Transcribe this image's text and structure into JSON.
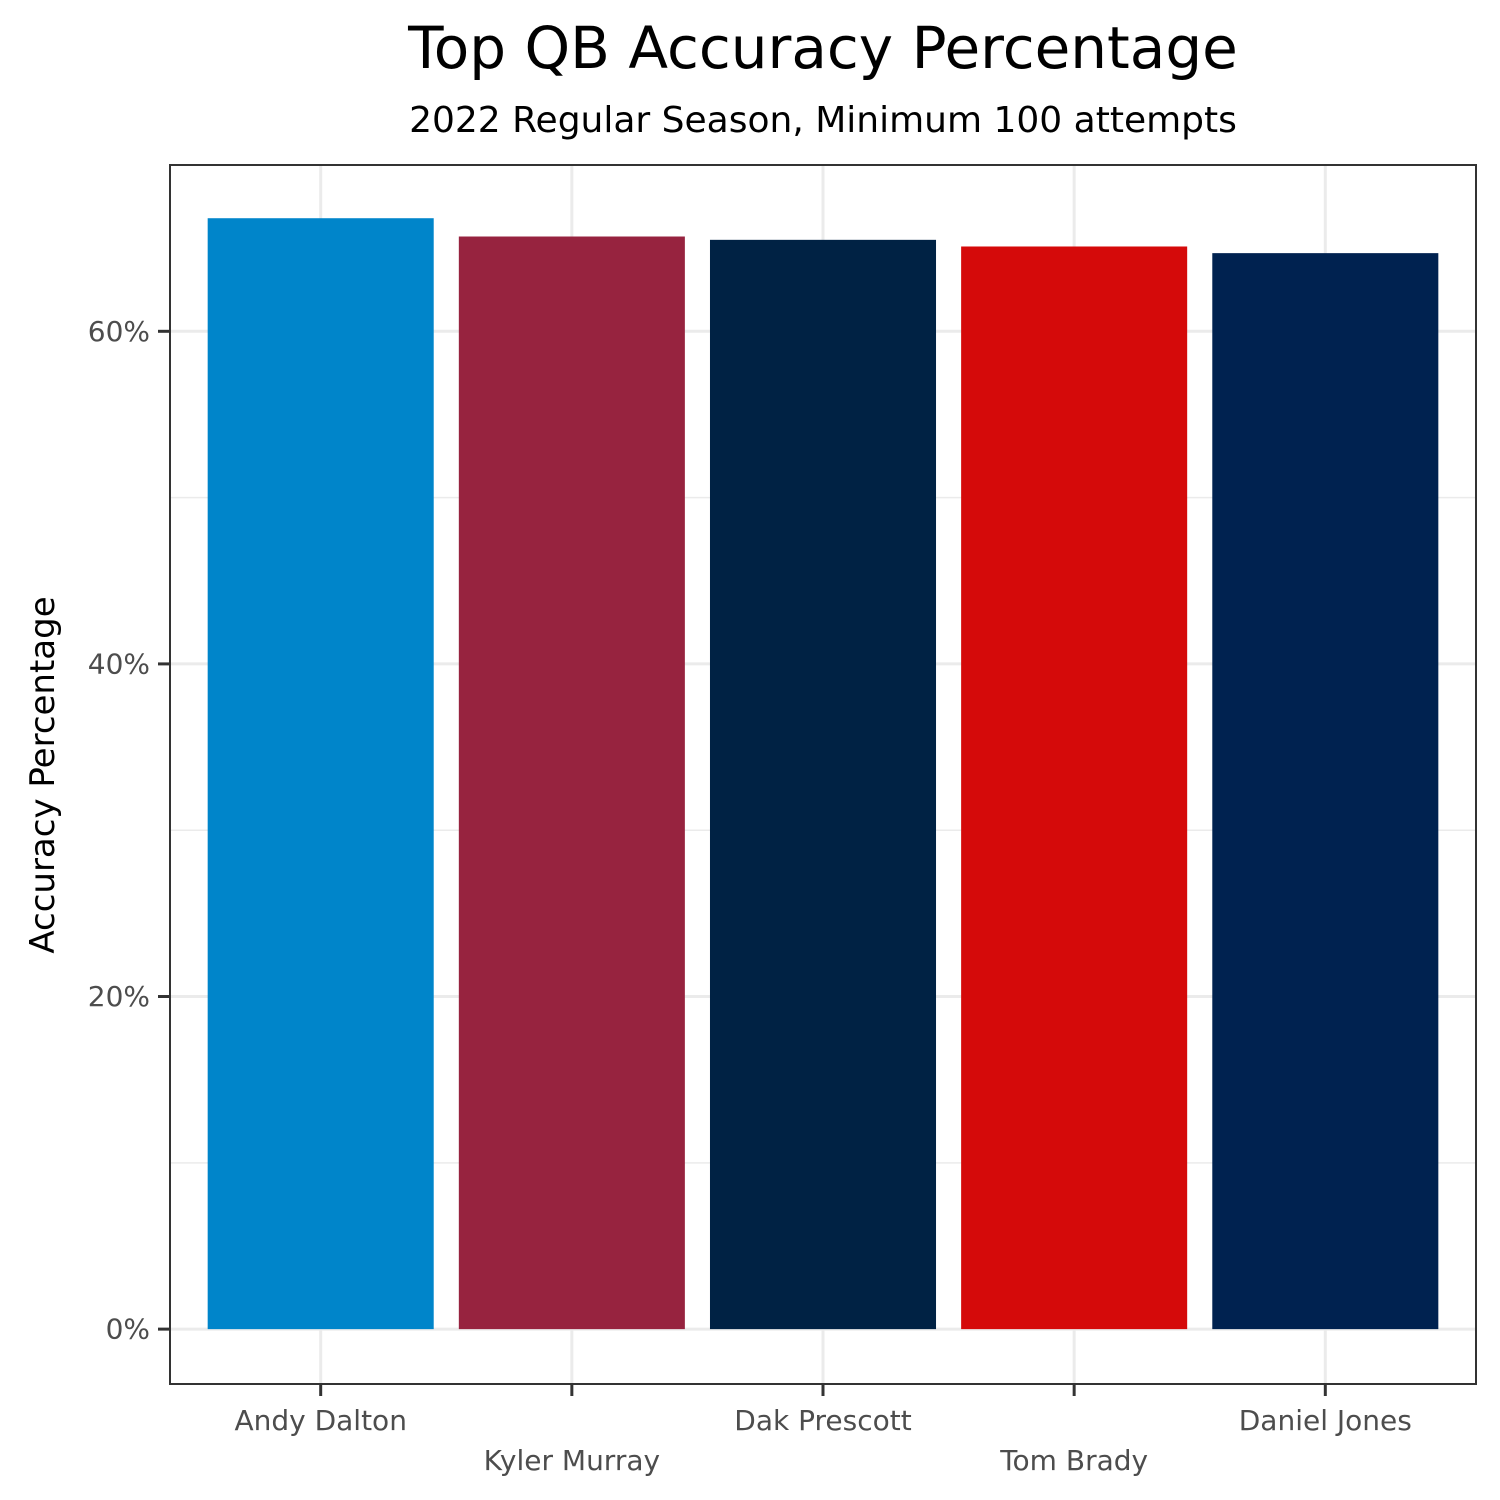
{
  "chart_data": {
    "type": "bar",
    "title": "Top QB Accuracy Percentage",
    "subtitle": "2022 Regular Season, Minimum 100 attempts",
    "xlabel": "",
    "ylabel": "Accuracy  Percentage",
    "categories": [
      "Andy Dalton",
      "Kyler Murray",
      "Dak Prescott",
      "Tom Brady",
      "Daniel Jones"
    ],
    "values": [
      66.8,
      65.7,
      65.5,
      65.1,
      64.7
    ],
    "colors": [
      "#0085CA",
      "#97233F",
      "#002244",
      "#D50A0A",
      "#002250"
    ],
    "ylim": [
      -3.3,
      70
    ],
    "yticks": [
      0,
      20,
      40,
      60
    ],
    "ytick_labels": [
      "0%",
      "20%",
      "40%",
      "60%"
    ],
    "y_minor_ticks": [
      10,
      30,
      50
    ],
    "grid": true,
    "legend": "none"
  }
}
